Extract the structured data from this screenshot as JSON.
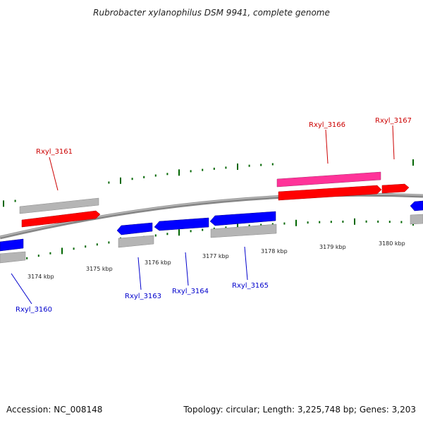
{
  "title": "Rubrobacter xylanophilus DSM 9941, complete genome",
  "footer": {
    "accession": "Accession: NC_008148",
    "topology": "Topology: circular; Length: 3,225,748 bp; Genes: 3,203"
  },
  "colors": {
    "forward_cds": "#ff0000",
    "forward_labeled": "#ff3399",
    "reverse_cds": "#0000ff",
    "gene_shadow": "#bbbbbb",
    "backbone": "#888888",
    "tick": "#006600",
    "label_forward": "#cc0000",
    "label_reverse": "#0000cc"
  },
  "ticks_kbp": [
    {
      "label": "3174 kbp"
    },
    {
      "label": "3175 kbp"
    },
    {
      "label": "3176 kbp"
    },
    {
      "label": "3177 kbp"
    },
    {
      "label": "3178 kbp"
    },
    {
      "label": "3179 kbp"
    },
    {
      "label": "3180 kbp"
    }
  ],
  "gene_labels": [
    {
      "name": "Rxyl_3160",
      "strand": "reverse"
    },
    {
      "name": "Rxyl_3161",
      "strand": "forward"
    },
    {
      "name": "Rxyl_3163",
      "strand": "reverse"
    },
    {
      "name": "Rxyl_3164",
      "strand": "reverse"
    },
    {
      "name": "Rxyl_3165",
      "strand": "reverse"
    },
    {
      "name": "Rxyl_3166",
      "strand": "forward"
    },
    {
      "name": "Rxyl_3167",
      "strand": "forward"
    }
  ]
}
